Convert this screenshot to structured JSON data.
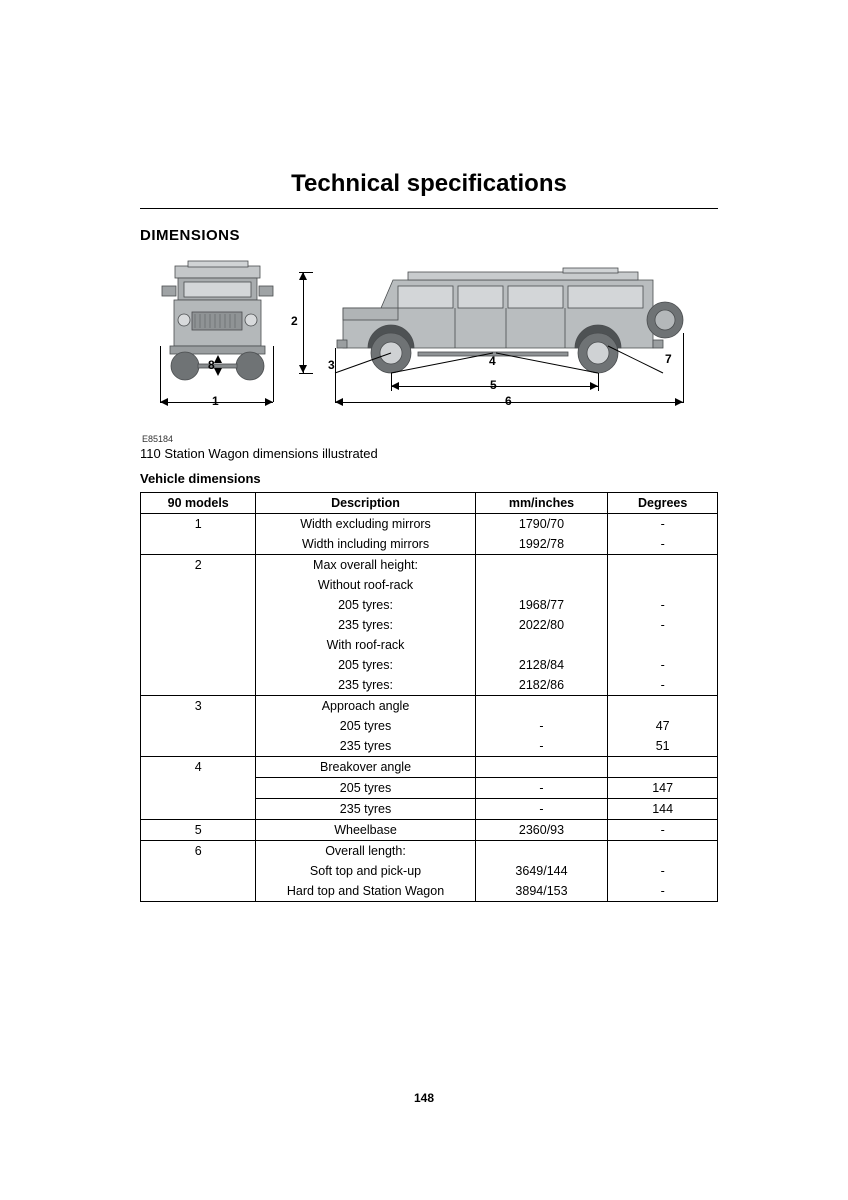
{
  "title": "Technical specifications",
  "section": "DIMENSIONS",
  "figure_ref": "E85184",
  "caption": "110 Station Wagon dimensions illustrated",
  "subheading": "Vehicle dimensions",
  "page_number": "148",
  "diagram": {
    "vehicle_fill": "#b9bdbf",
    "vehicle_stroke": "#4a4d4f",
    "dim_labels": [
      "1",
      "2",
      "3",
      "4",
      "5",
      "6",
      "7",
      "8"
    ]
  },
  "table": {
    "columns": [
      "90 models",
      "Description",
      "mm/inches",
      "Degrees"
    ],
    "groups": [
      {
        "model": "1",
        "rows": [
          {
            "desc": "Width excluding mirrors",
            "mm": "1790/70",
            "deg": "-"
          },
          {
            "desc": "Width including mirrors",
            "mm": "1992/78",
            "deg": "-"
          }
        ]
      },
      {
        "model": "2",
        "rows": [
          {
            "desc": "Max overall height:",
            "mm": "",
            "deg": ""
          },
          {
            "desc": "Without roof-rack",
            "mm": "",
            "deg": ""
          },
          {
            "desc": "205 tyres:",
            "mm": "1968/77",
            "deg": "-"
          },
          {
            "desc": "235 tyres:",
            "mm": "2022/80",
            "deg": "-"
          },
          {
            "desc": "With roof-rack",
            "mm": "",
            "deg": ""
          },
          {
            "desc": "205 tyres:",
            "mm": "2128/84",
            "deg": "-"
          },
          {
            "desc": "235 tyres:",
            "mm": "2182/86",
            "deg": "-"
          }
        ]
      },
      {
        "model": "3",
        "rows": [
          {
            "desc": "Approach angle",
            "mm": "",
            "deg": ""
          },
          {
            "desc": "205 tyres",
            "mm": "-",
            "deg": "47"
          },
          {
            "desc": "235 tyres",
            "mm": "-",
            "deg": "51"
          }
        ]
      },
      {
        "model": "4",
        "full_row_borders": true,
        "rows": [
          {
            "desc": "Breakover angle",
            "mm": "",
            "deg": ""
          },
          {
            "desc": "205 tyres",
            "mm": "-",
            "deg": "147"
          },
          {
            "desc": "235 tyres",
            "mm": "-",
            "deg": "144"
          }
        ]
      },
      {
        "model": "5",
        "rows": [
          {
            "desc": "Wheelbase",
            "mm": "2360/93",
            "deg": "-"
          }
        ]
      },
      {
        "model": "6",
        "rows": [
          {
            "desc": "Overall length:",
            "mm": "",
            "deg": ""
          },
          {
            "desc": "Soft top and pick-up",
            "mm": "3649/144",
            "deg": "-"
          },
          {
            "desc": "Hard top and Station Wagon",
            "mm": "3894/153",
            "deg": "-"
          }
        ]
      }
    ]
  }
}
